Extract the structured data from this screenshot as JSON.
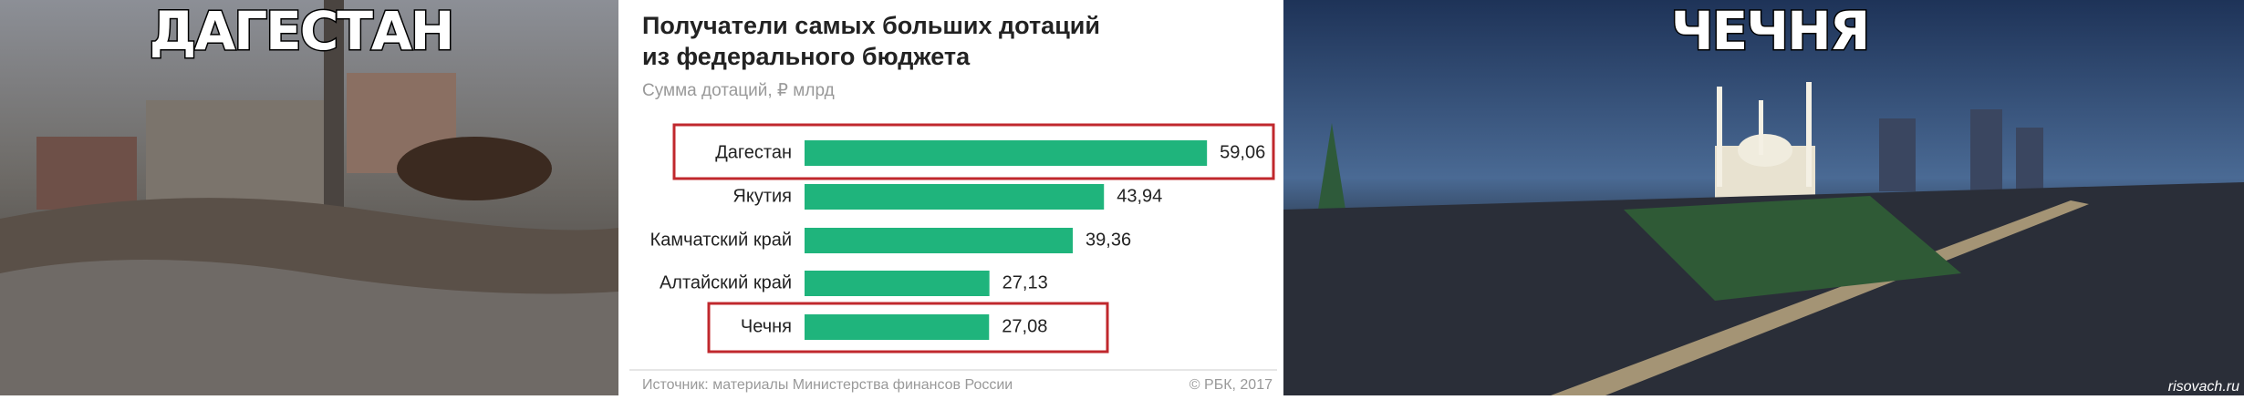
{
  "left_image": {
    "caption": "ДАГЕСТАН"
  },
  "right_image": {
    "caption": "ЧЕЧНЯ",
    "watermark": "risovach.ru"
  },
  "chart_data": {
    "type": "bar",
    "orientation": "horizontal",
    "title": "Получатели самых больших дотаций из федерального бюджета",
    "subtitle": "Сумма дотаций, ₽ млрд",
    "categories": [
      "Дагестан",
      "Якутия",
      "Камчатский край",
      "Алтайский край",
      "Чечня"
    ],
    "values": [
      59.06,
      43.94,
      39.36,
      27.13,
      27.08
    ],
    "value_labels": [
      "59,06",
      "43,94",
      "39,36",
      "27,13",
      "27,08"
    ],
    "color": "#1fb47c",
    "source": "Источник: материалы Министерства финансов России",
    "credit": "© РБК, 2017"
  }
}
